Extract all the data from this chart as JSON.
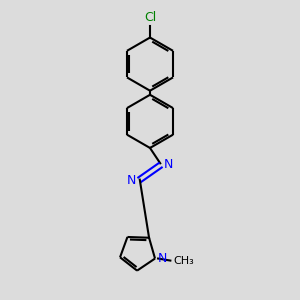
{
  "background_color": "#dcdcdc",
  "bond_color": "#000000",
  "n_color": "#0000ff",
  "cl_color": "#008000",
  "line_width": 1.5,
  "dbo": 0.012,
  "figsize": [
    3.0,
    3.0
  ],
  "dpi": 100,
  "xlim": [
    -0.55,
    0.55
  ],
  "ylim": [
    -0.72,
    0.72
  ]
}
